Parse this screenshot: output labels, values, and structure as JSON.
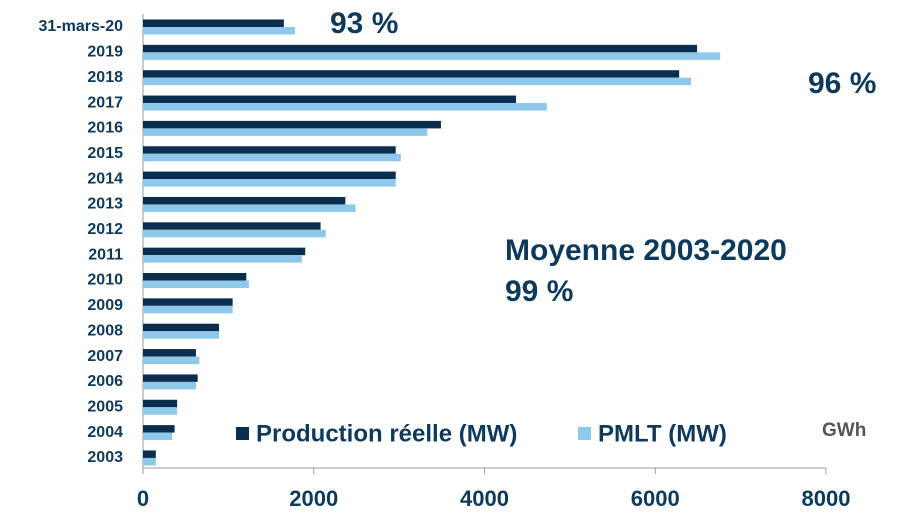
{
  "chart_data": {
    "type": "hbar",
    "categories": [
      "31-mars-20",
      "2019",
      "2018",
      "2017",
      "2016",
      "2015",
      "2014",
      "2013",
      "2012",
      "2011",
      "2010",
      "2009",
      "2008",
      "2007",
      "2006",
      "2005",
      "2004",
      "2003"
    ],
    "series": [
      {
        "name": "Production réelle (MW)",
        "color": "#0b2e4f",
        "values": [
          1650,
          6490,
          6280,
          4370,
          3490,
          2960,
          2960,
          2370,
          2080,
          1900,
          1210,
          1050,
          890,
          620,
          640,
          400,
          370,
          150
        ]
      },
      {
        "name": "PMLT (MW)",
        "color": "#8ec8ea",
        "values": [
          1780,
          6760,
          6420,
          4730,
          3330,
          3020,
          2960,
          2490,
          2140,
          1860,
          1240,
          1050,
          890,
          660,
          620,
          400,
          340,
          150
        ]
      }
    ],
    "xlim": [
      0,
      8000
    ],
    "xticks": [
      0,
      2000,
      4000,
      6000,
      8000
    ],
    "unit_label": "GWh",
    "annotations": [
      "93 %",
      "96 %",
      "Moyenne 2003-2020",
      "99 %"
    ]
  }
}
